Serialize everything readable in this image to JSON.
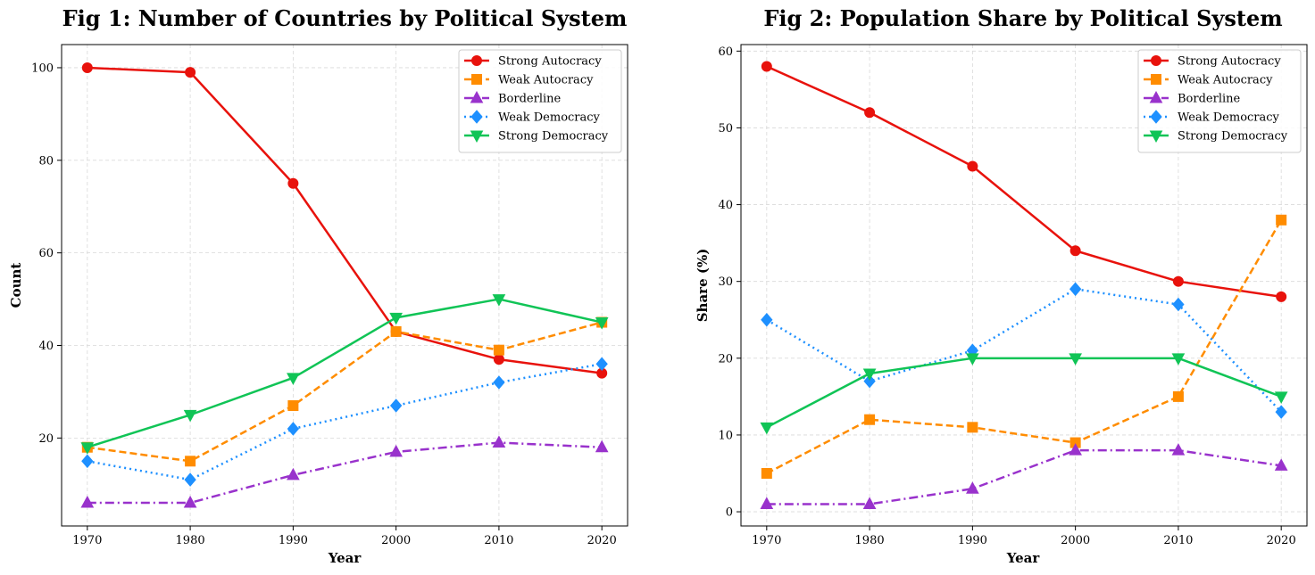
{
  "chart_data": [
    {
      "type": "line",
      "title": "Fig 1: Number of Countries by Political System",
      "xlabel": "Year",
      "ylabel": "Count",
      "x": [
        1970,
        1980,
        1990,
        2000,
        2010,
        2020
      ],
      "xlim": [
        1967.5,
        2022.5
      ],
      "ylim": [
        1,
        105
      ],
      "yticks": [
        20,
        40,
        60,
        80,
        100
      ],
      "grid": true,
      "legend": "top-right",
      "series": [
        {
          "name": "Strong Autocracy",
          "values": [
            100,
            99,
            75,
            43,
            37,
            34
          ],
          "color": "#e8120c",
          "marker": "circle",
          "dash": "solid"
        },
        {
          "name": "Weak Autocracy",
          "values": [
            18,
            15,
            27,
            43,
            39,
            45
          ],
          "color": "#ff8c00",
          "marker": "square",
          "dash": "dashed"
        },
        {
          "name": "Borderline",
          "values": [
            6,
            6,
            12,
            17,
            19,
            18
          ],
          "color": "#9932cc",
          "marker": "triangle-up",
          "dash": "dashdot"
        },
        {
          "name": "Weak Democracy",
          "values": [
            15,
            11,
            22,
            27,
            32,
            36
          ],
          "color": "#1e90ff",
          "marker": "diamond",
          "dash": "dotted"
        },
        {
          "name": "Strong Democracy",
          "values": [
            18,
            25,
            33,
            46,
            50,
            45
          ],
          "color": "#10c456",
          "marker": "triangle-down",
          "dash": "solid"
        }
      ]
    },
    {
      "type": "line",
      "title": "Fig 2: Population Share by Political System",
      "xlabel": "Year",
      "ylabel": "Share (%)",
      "x": [
        1970,
        1980,
        1990,
        2000,
        2010,
        2020
      ],
      "xlim": [
        1967.5,
        2022.5
      ],
      "ylim": [
        -1.85,
        60.85
      ],
      "yticks": [
        0,
        10,
        20,
        30,
        40,
        50,
        60
      ],
      "grid": true,
      "legend": "top-right",
      "series": [
        {
          "name": "Strong Autocracy",
          "values": [
            58,
            52,
            45,
            34,
            30,
            28
          ],
          "color": "#e8120c",
          "marker": "circle",
          "dash": "solid"
        },
        {
          "name": "Weak Autocracy",
          "values": [
            5,
            12,
            11,
            9,
            15,
            38
          ],
          "color": "#ff8c00",
          "marker": "square",
          "dash": "dashed"
        },
        {
          "name": "Borderline",
          "values": [
            1,
            1,
            3,
            8,
            8,
            6
          ],
          "color": "#9932cc",
          "marker": "triangle-up",
          "dash": "dashdot"
        },
        {
          "name": "Weak Democracy",
          "values": [
            25,
            17,
            21,
            29,
            27,
            13
          ],
          "color": "#1e90ff",
          "marker": "diamond",
          "dash": "dotted"
        },
        {
          "name": "Strong Democracy",
          "values": [
            11,
            18,
            20,
            20,
            20,
            15
          ],
          "color": "#10c456",
          "marker": "triangle-down",
          "dash": "solid"
        }
      ]
    }
  ]
}
